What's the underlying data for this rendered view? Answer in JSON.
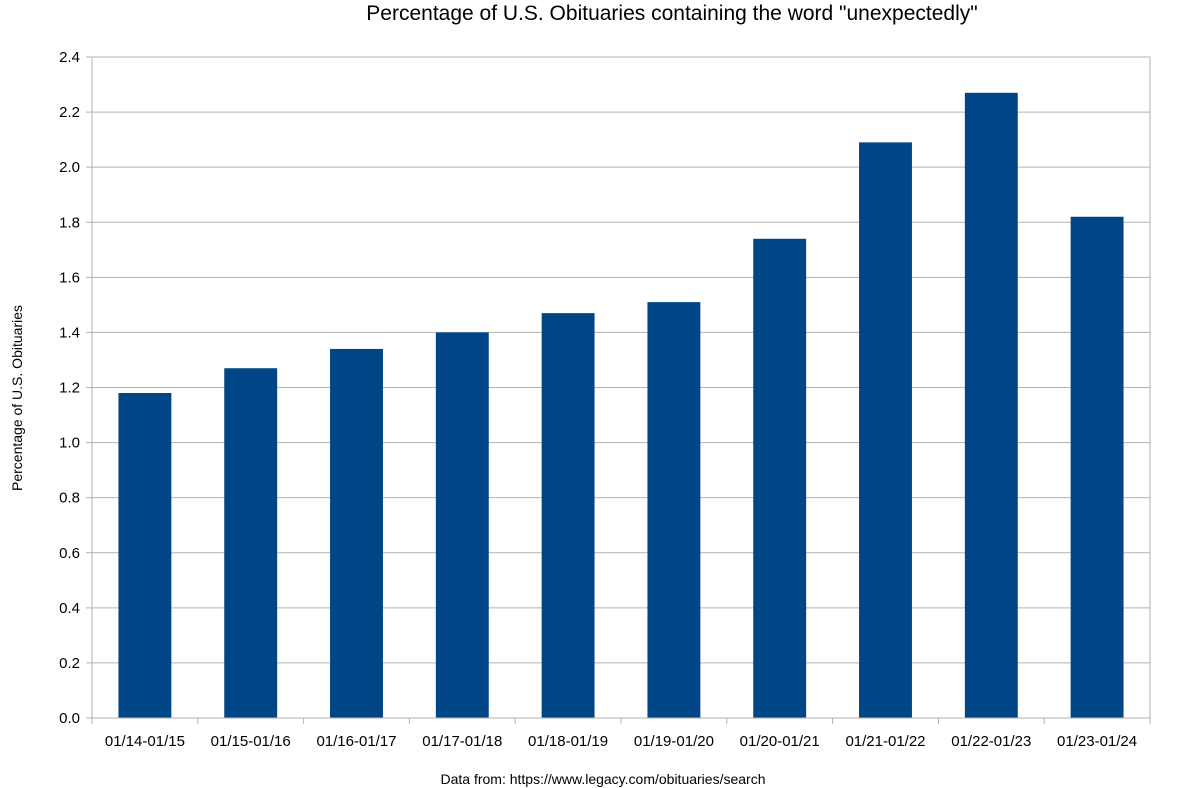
{
  "chart_data": {
    "type": "bar",
    "title": "Percentage of U.S. Obituaries containing the word \"unexpectedly\"",
    "ylabel": "Percentage of U.S. Obituaries",
    "xlabel": "",
    "source_note": "Data from: https://www.legacy.com/obituaries/search",
    "categories": [
      "01/14-01/15",
      "01/15-01/16",
      "01/16-01/17",
      "01/17-01/18",
      "01/18-01/19",
      "01/19-01/20",
      "01/20-01/21",
      "01/21-01/22",
      "01/22-01/23",
      "01/23-01/24"
    ],
    "values": [
      1.18,
      1.27,
      1.34,
      1.4,
      1.47,
      1.51,
      1.74,
      2.09,
      2.27,
      1.82
    ],
    "ylim": [
      0,
      2.4
    ],
    "yticks": [
      "0.0",
      "0.2",
      "0.4",
      "0.6",
      "0.8",
      "1.0",
      "1.2",
      "1.4",
      "1.6",
      "1.8",
      "2.0",
      "2.2",
      "2.4"
    ],
    "grid": true,
    "legend": "none",
    "bar_color": "#004586",
    "grid_color": "#b3b3b3",
    "axis_color": "#b3b3b3"
  }
}
